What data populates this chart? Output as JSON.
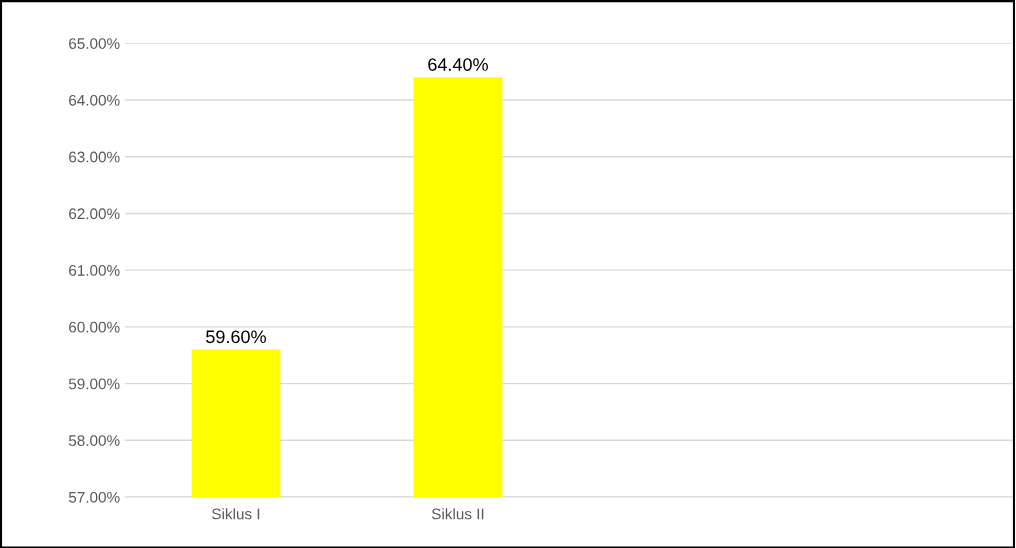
{
  "chart_data": {
    "type": "bar",
    "categories": [
      "Siklus I",
      "Siklus II",
      null,
      null
    ],
    "values": [
      59.6,
      64.4,
      null,
      null
    ],
    "value_labels": [
      "59.60%",
      "64.40%",
      null,
      null
    ],
    "color": "#ffff00",
    "ylim": [
      57,
      65
    ],
    "yticks": [
      {
        "value": 57,
        "label": "57.00%"
      },
      {
        "value": 58,
        "label": "58.00%"
      },
      {
        "value": 59,
        "label": "59.00%"
      },
      {
        "value": 60,
        "label": "60.00%"
      },
      {
        "value": 61,
        "label": "61.00%"
      },
      {
        "value": 62,
        "label": "62.00%"
      },
      {
        "value": 63,
        "label": "63.00%"
      },
      {
        "value": 64,
        "label": "64.00%"
      },
      {
        "value": 65,
        "label": "65.00%"
      }
    ],
    "grid": "y",
    "legend": false
  }
}
